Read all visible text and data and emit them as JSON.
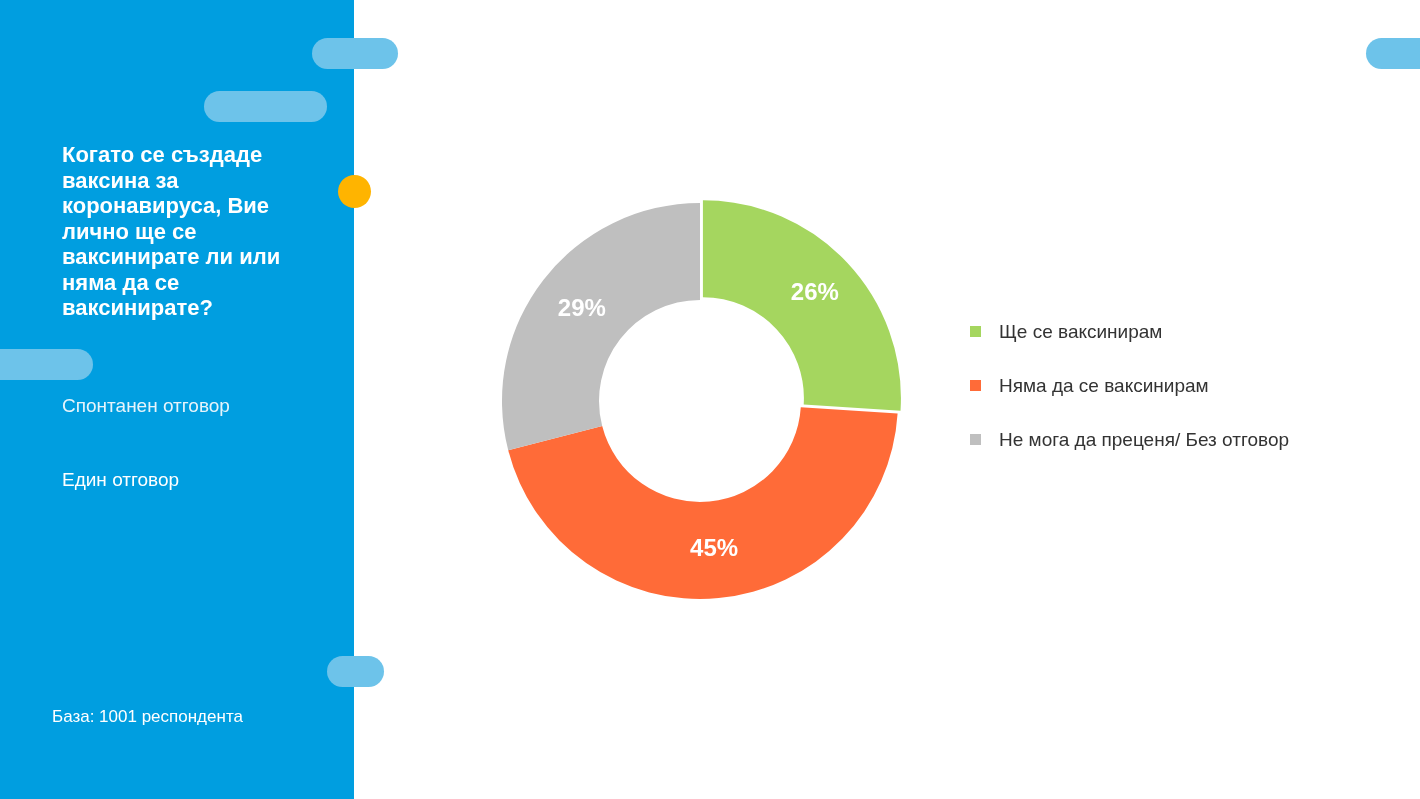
{
  "chart_data": {
    "type": "donut",
    "title": "Когато се създаде ваксина за коронавируса, Вие лично ще се ваксинирате ли или няма да се ваксинирате?",
    "subtitle": "Спонтанен отговор",
    "annotations": [
      "Един отговор",
      "База: 1001 респондента"
    ],
    "categories": [
      "Ще се ваксинирам",
      "Няма да се ваксинирам",
      "Не мога да преценя/ Без отговор"
    ],
    "values": [
      26,
      45,
      29
    ],
    "colors": [
      "#a5d65f",
      "#ff6b38",
      "#bfbfbf"
    ],
    "value_labels": [
      "26%",
      "45%",
      "29%"
    ],
    "legend": "right"
  }
}
